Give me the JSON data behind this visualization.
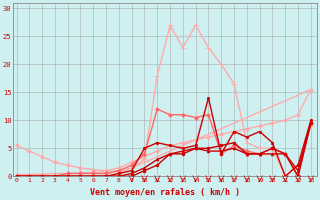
{
  "xlabel": "Vent moyen/en rafales ( km/h )",
  "xlabel_color": "#cc0000",
  "bg_color": "#cff0f0",
  "grid_color": "#aaaaaa",
  "yticks": [
    0,
    5,
    10,
    15,
    20,
    25,
    30
  ],
  "xticks": [
    0,
    1,
    2,
    3,
    4,
    5,
    6,
    7,
    8,
    9,
    10,
    11,
    12,
    13,
    14,
    15,
    16,
    17,
    18,
    19,
    20,
    21,
    22,
    23
  ],
  "xlim": [
    -0.3,
    23.5
  ],
  "ylim": [
    0,
    31
  ],
  "series": [
    {
      "x": [
        0,
        1,
        2,
        3,
        4,
        5,
        6,
        7,
        8,
        9,
        10,
        11,
        12,
        13,
        14,
        15,
        16,
        17,
        18,
        19,
        20,
        21,
        22,
        23
      ],
      "y": [
        0.3,
        0.3,
        0.4,
        0.5,
        0.5,
        0.6,
        0.7,
        0.8,
        1.0,
        1.5,
        2.5,
        3.5,
        4.5,
        5.5,
        6.5,
        7.5,
        8.5,
        9.5,
        10.5,
        11.5,
        12.5,
        13.5,
        14.5,
        15.5
      ],
      "color": "#ffaaaa",
      "linewidth": 1.0,
      "marker": null
    },
    {
      "x": [
        0,
        1,
        2,
        3,
        4,
        5,
        6,
        7,
        8,
        9,
        10,
        11,
        12,
        13,
        14,
        15,
        16,
        17,
        18,
        19,
        20,
        21,
        22,
        23
      ],
      "y": [
        5.5,
        4.5,
        3.5,
        2.5,
        2.0,
        1.5,
        1.2,
        1.0,
        1.5,
        2.5,
        3.5,
        4.5,
        5.5,
        6.0,
        6.5,
        7.0,
        7.5,
        8.0,
        8.5,
        9.0,
        9.5,
        10.0,
        11.0,
        15.5
      ],
      "color": "#ffaaaa",
      "linewidth": 1.0,
      "marker": "D",
      "markersize": 2
    },
    {
      "x": [
        0,
        1,
        2,
        3,
        4,
        5,
        6,
        7,
        8,
        9,
        10,
        11,
        12,
        13,
        14,
        15,
        16,
        17,
        18,
        19,
        20,
        21,
        22,
        23
      ],
      "y": [
        0,
        0,
        0,
        0,
        0,
        0,
        0,
        0,
        0.5,
        1.5,
        3,
        18,
        27,
        23,
        27,
        23,
        20,
        16.5,
        6,
        5,
        5,
        0,
        2,
        9
      ],
      "color": "#ffaaaa",
      "linewidth": 1.0,
      "marker": "+",
      "markersize": 4
    },
    {
      "x": [
        0,
        1,
        2,
        3,
        4,
        5,
        6,
        7,
        8,
        9,
        10,
        11,
        12,
        13,
        14,
        15,
        16,
        17,
        18,
        19,
        20,
        21,
        22,
        23
      ],
      "y": [
        0,
        0,
        0,
        0,
        0.5,
        0.5,
        0.5,
        0.5,
        1,
        2,
        4,
        12,
        11,
        11,
        10.5,
        11,
        4,
        5.5,
        4.5,
        4,
        5,
        4,
        0,
        9.5
      ],
      "color": "#ff6666",
      "linewidth": 1.0,
      "marker": "D",
      "markersize": 2
    },
    {
      "x": [
        0,
        1,
        2,
        3,
        4,
        5,
        6,
        7,
        8,
        9,
        10,
        11,
        12,
        13,
        14,
        15,
        16,
        17,
        18,
        19,
        20,
        21,
        22,
        23
      ],
      "y": [
        0,
        0,
        0,
        0,
        0,
        0,
        0,
        0,
        0.5,
        1,
        5,
        6,
        5.5,
        5,
        5.5,
        14,
        4,
        8,
        7,
        8,
        6,
        0,
        2,
        10
      ],
      "color": "#cc0000",
      "linewidth": 1.0,
      "marker": "s",
      "markersize": 2
    },
    {
      "x": [
        0,
        1,
        2,
        3,
        4,
        5,
        6,
        7,
        8,
        9,
        10,
        11,
        12,
        13,
        14,
        15,
        16,
        17,
        18,
        19,
        20,
        21,
        22,
        23
      ],
      "y": [
        0,
        0,
        0,
        0,
        0,
        0,
        0,
        0,
        0,
        0.5,
        1.5,
        3,
        4,
        4.5,
        5,
        4.5,
        4.5,
        5,
        4,
        4,
        4,
        4,
        1,
        9.5
      ],
      "color": "#cc0000",
      "linewidth": 1.0,
      "marker": "^",
      "markersize": 2
    },
    {
      "x": [
        0,
        1,
        2,
        3,
        4,
        5,
        6,
        7,
        8,
        9,
        10,
        11,
        12,
        13,
        14,
        15,
        16,
        17,
        18,
        19,
        20,
        21,
        22,
        23
      ],
      "y": [
        0,
        0,
        0,
        0,
        0,
        0,
        0,
        0,
        0,
        0,
        1,
        2,
        4,
        4,
        5,
        5,
        5.5,
        6,
        4,
        4,
        5,
        4,
        0,
        9.5
      ],
      "color": "#cc0000",
      "linewidth": 1.0,
      "marker": "o",
      "markersize": 2
    }
  ]
}
